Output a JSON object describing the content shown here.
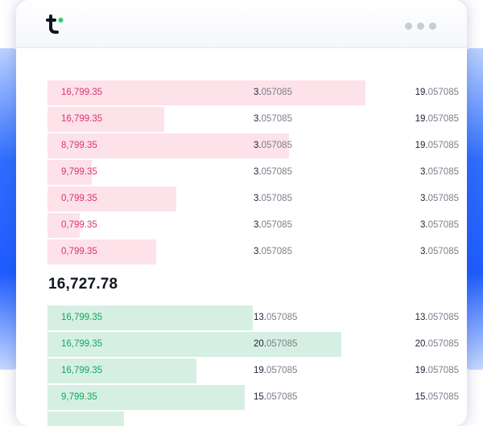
{
  "colors": {
    "ask_text": "#e0306a",
    "ask_bar": "#fde2ea",
    "bid_text": "#14a660",
    "bid_bar": "#d6efe3",
    "logo_dark": "#0f1620",
    "logo_green": "#2ecc71"
  },
  "header": {
    "logo_icon": "t-logo-icon",
    "menu_icon": "more-dots-icon"
  },
  "asks": [
    {
      "price": "16,799.35",
      "amount_hi": "3.",
      "amount_lo": "057085",
      "total_hi": "19.",
      "total_lo": "057085",
      "depth": 0.79
    },
    {
      "price": "16,799.35",
      "amount_hi": "3.",
      "amount_lo": "057085",
      "total_hi": "19.",
      "total_lo": "057085",
      "depth": 0.29
    },
    {
      "price": "8,799.35",
      "amount_hi": "3.",
      "amount_lo": "057085",
      "total_hi": "19.",
      "total_lo": "057085",
      "depth": 0.6
    },
    {
      "price": "9,799.35",
      "amount_hi": "3.",
      "amount_lo": "057085",
      "total_hi": "3.",
      "total_lo": "057085",
      "depth": 0.11
    },
    {
      "price": "0,799.35",
      "amount_hi": "3.",
      "amount_lo": "057085",
      "total_hi": "3.",
      "total_lo": "057085",
      "depth": 0.32
    },
    {
      "price": "0,799.35",
      "amount_hi": "3.",
      "amount_lo": "057085",
      "total_hi": "3.",
      "total_lo": "057085",
      "depth": 0.08
    },
    {
      "price": "0,799.35",
      "amount_hi": "3.",
      "amount_lo": "057085",
      "total_hi": "3.",
      "total_lo": "057085",
      "depth": 0.27
    }
  ],
  "mid_price": "16,727.78",
  "bids": [
    {
      "price": "16,799.35",
      "amount_hi": "13.",
      "amount_lo": "057085",
      "total_hi": "13.",
      "total_lo": "057085",
      "depth": 0.51
    },
    {
      "price": "16,799.35",
      "amount_hi": "20.",
      "amount_lo": "057085",
      "total_hi": "20.",
      "total_lo": "057085",
      "depth": 0.73
    },
    {
      "price": "16,799.35",
      "amount_hi": "19.",
      "amount_lo": "057085",
      "total_hi": "19.",
      "total_lo": "057085",
      "depth": 0.37
    },
    {
      "price": "9,799.35",
      "amount_hi": "15.",
      "amount_lo": "057085",
      "total_hi": "15.",
      "total_lo": "057085",
      "depth": 0.49
    },
    {
      "price": "",
      "amount_hi": "",
      "amount_lo": "",
      "total_hi": "",
      "total_lo": "",
      "depth": 0.19
    }
  ]
}
